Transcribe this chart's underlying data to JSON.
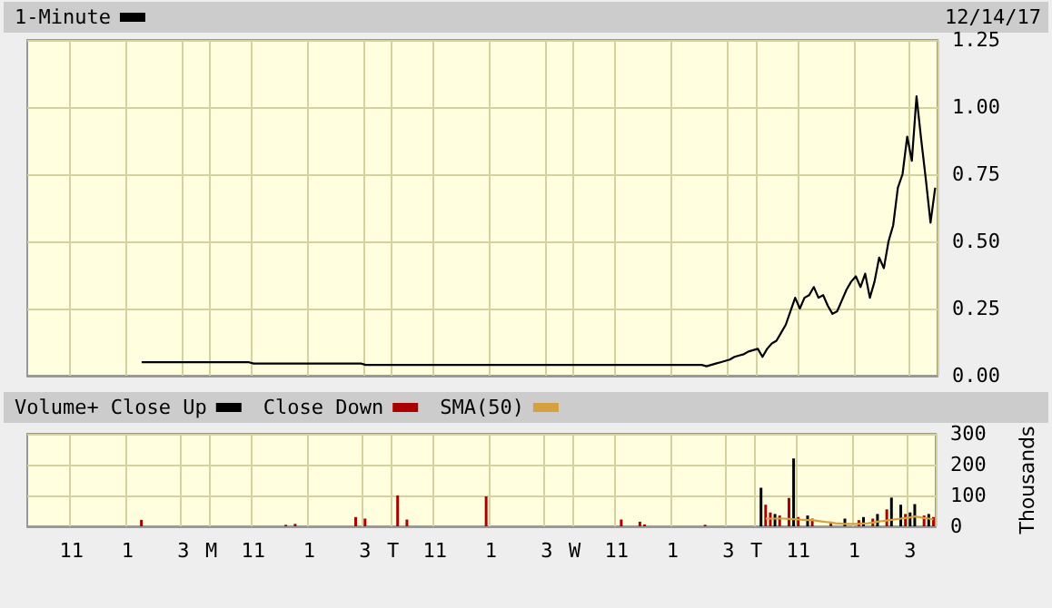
{
  "chart_data": [
    {
      "type": "line",
      "annotations": [
        "12/14/17"
      ],
      "legend": "top left",
      "grid": true,
      "marker": "none",
      "tick_labels": "y",
      "categories": [
        null,
        null,
        null,
        null,
        null,
        null,
        null,
        null,
        null,
        null,
        null,
        null,
        null,
        null,
        null,
        null,
        null,
        null,
        null,
        null,
        null,
        null,
        null,
        null,
        null,
        null,
        null,
        null,
        null,
        null,
        null,
        null,
        null,
        null,
        null,
        null,
        null,
        null,
        null,
        null,
        null,
        null,
        null,
        null,
        null,
        null,
        null,
        null,
        null,
        null,
        null,
        null,
        null,
        null,
        null,
        null,
        null,
        null,
        null,
        null,
        null,
        null,
        null,
        null,
        null,
        null,
        null,
        null,
        null,
        null,
        null,
        null,
        null,
        null,
        null,
        null,
        null,
        null,
        null,
        null,
        null,
        null,
        null,
        null,
        null,
        null,
        null,
        null,
        null,
        null,
        null,
        null,
        null,
        null,
        null,
        null,
        null,
        null,
        null,
        null,
        null,
        null,
        null,
        null,
        null,
        null,
        null,
        null,
        null,
        null,
        null,
        null,
        null,
        null,
        null,
        null,
        null,
        null,
        null,
        null,
        null,
        null,
        null,
        null,
        null,
        null,
        null,
        null,
        null,
        null,
        null,
        null,
        null,
        null,
        null,
        null,
        null,
        null,
        null,
        null,
        null,
        null,
        null,
        null,
        null,
        null,
        null,
        null,
        null,
        null,
        null,
        null,
        null,
        null,
        null,
        null,
        null,
        null,
        null,
        null,
        null,
        null,
        null,
        null,
        null,
        null,
        null,
        null,
        null,
        null,
        null,
        null,
        null,
        null,
        null,
        null,
        null,
        null,
        null,
        null,
        null,
        null,
        null,
        null,
        null,
        null,
        null,
        null,
        null,
        null,
        null,
        null,
        null,
        null,
        null
      ],
      "ylim": [
        0,
        1.25
      ],
      "yticks": [
        {
          "value": 0,
          "label": "0.00"
        },
        {
          "value": 0.25,
          "label": "0.25"
        },
        {
          "value": 0.5,
          "label": "0.50"
        },
        {
          "value": 0.75,
          "label": "0.75"
        },
        {
          "value": 1,
          "label": "1.00"
        },
        {
          "value": 1.25,
          "label": "1.25"
        }
      ],
      "series": [
        {
          "name": "1-Minute",
          "color": "#000000",
          "values": [
            null,
            null,
            null,
            null,
            null,
            null,
            null,
            null,
            null,
            null,
            null,
            null,
            null,
            null,
            null,
            null,
            null,
            null,
            null,
            null,
            null,
            null,
            null,
            null,
            0.05,
            0.05,
            0.05,
            0.05,
            0.05,
            0.05,
            0.05,
            0.05,
            0.05,
            0.05,
            0.05,
            0.05,
            0.05,
            0.05,
            0.05,
            0.05,
            0.05,
            0.05,
            0.05,
            0.05,
            0.05,
            0.05,
            0.05,
            0.05,
            0.045,
            0.045,
            0.045,
            0.045,
            0.045,
            0.045,
            0.045,
            0.045,
            0.045,
            0.045,
            0.045,
            0.045,
            0.045,
            0.045,
            0.045,
            0.045,
            0.045,
            0.045,
            0.045,
            0.045,
            0.045,
            0.045,
            0.045,
            0.045,
            0.04,
            0.04,
            0.04,
            0.04,
            0.04,
            0.04,
            0.04,
            0.04,
            0.04,
            0.04,
            0.04,
            0.04,
            0.04,
            0.04,
            0.04,
            0.04,
            0.04,
            0.04,
            0.04,
            0.04,
            0.04,
            0.04,
            0.04,
            0.04,
            0.04,
            0.04,
            0.04,
            0.04,
            0.04,
            0.04,
            0.04,
            0.04,
            0.04,
            0.04,
            0.04,
            0.04,
            0.04,
            0.04,
            0.04,
            0.04,
            0.04,
            0.04,
            0.04,
            0.04,
            0.04,
            0.04,
            0.04,
            0.04,
            0.04,
            0.04,
            0.04,
            0.04,
            0.04,
            0.04,
            0.04,
            0.04,
            0.04,
            0.04,
            0.04,
            0.04,
            0.04,
            0.04,
            0.04,
            0.04,
            0.04,
            0.04,
            0.04,
            0.04,
            0.04,
            0.04,
            0.04,
            0.04,
            0.04,
            0.035,
            0.04,
            0.045,
            0.05,
            0.055,
            0.06,
            0.07,
            0.075,
            0.08,
            0.09,
            0.095,
            0.1,
            0.07,
            0.1,
            0.12,
            0.13,
            0.16,
            0.19,
            0.24,
            0.29,
            0.25,
            0.29,
            0.3,
            0.33,
            0.29,
            0.3,
            0.26,
            0.23,
            0.24,
            0.28,
            0.32,
            0.35,
            0.37,
            0.33,
            0.38,
            0.29,
            0.35,
            0.44,
            0.4,
            0.5,
            0.56,
            0.7,
            0.75,
            0.89,
            0.8,
            1.04,
            0.88,
            0.73,
            0.57,
            0.7
          ]
        }
      ]
    },
    {
      "type": "bar",
      "legend_title": "Volume+",
      "legend": "top left",
      "grid": true,
      "ylabel": "Thousands",
      "categories": [
        null,
        null,
        null,
        null,
        null,
        null,
        null,
        null,
        null,
        "11",
        null,
        null,
        null,
        null,
        null,
        null,
        null,
        null,
        null,
        null,
        null,
        "1",
        null,
        null,
        null,
        null,
        null,
        null,
        null,
        null,
        null,
        null,
        null,
        "3",
        null,
        null,
        null,
        null,
        null,
        "M",
        null,
        null,
        null,
        null,
        null,
        null,
        null,
        null,
        "11",
        null,
        null,
        null,
        null,
        null,
        null,
        null,
        null,
        null,
        null,
        null,
        "1",
        null,
        null,
        null,
        null,
        null,
        null,
        null,
        null,
        null,
        null,
        null,
        "3",
        null,
        null,
        null,
        null,
        null,
        "T",
        null,
        null,
        null,
        null,
        null,
        null,
        null,
        null,
        "11",
        null,
        null,
        null,
        null,
        null,
        null,
        null,
        null,
        null,
        null,
        null,
        "1",
        null,
        null,
        null,
        null,
        null,
        null,
        null,
        null,
        null,
        null,
        null,
        "3",
        null,
        null,
        null,
        null,
        null,
        "W",
        null,
        null,
        null,
        null,
        null,
        null,
        null,
        null,
        "11",
        null,
        null,
        null,
        null,
        null,
        null,
        null,
        null,
        null,
        null,
        null,
        "1",
        null,
        null,
        null,
        null,
        null,
        null,
        null,
        null,
        null,
        null,
        null,
        "3",
        null,
        null,
        null,
        null,
        null,
        "T",
        null,
        null,
        null,
        null,
        null,
        null,
        null,
        null,
        "11",
        null,
        null,
        null,
        null,
        null,
        null,
        null,
        null,
        null,
        null,
        null,
        "1",
        null,
        null,
        null,
        null,
        null,
        null,
        null,
        null,
        null,
        null,
        null,
        "3",
        null,
        null,
        null,
        null,
        null
      ],
      "ylim": [
        0,
        300
      ],
      "yticks": [
        0,
        100,
        200,
        300
      ],
      "series": [
        {
          "name": "Close Up",
          "color": "#000000",
          "values": [
            null,
            null,
            null,
            null,
            null,
            null,
            null,
            null,
            null,
            null,
            null,
            null,
            null,
            null,
            null,
            null,
            null,
            null,
            null,
            null,
            null,
            null,
            null,
            null,
            null,
            null,
            null,
            null,
            null,
            null,
            null,
            null,
            null,
            null,
            null,
            null,
            null,
            null,
            null,
            null,
            null,
            null,
            null,
            null,
            null,
            null,
            null,
            null,
            null,
            null,
            null,
            null,
            null,
            null,
            null,
            null,
            null,
            null,
            null,
            null,
            null,
            null,
            null,
            null,
            null,
            null,
            null,
            null,
            null,
            null,
            null,
            null,
            null,
            null,
            null,
            null,
            null,
            null,
            null,
            null,
            null,
            null,
            null,
            null,
            null,
            null,
            null,
            null,
            null,
            null,
            null,
            null,
            null,
            null,
            null,
            null,
            null,
            null,
            null,
            null,
            null,
            null,
            null,
            null,
            null,
            null,
            null,
            null,
            null,
            null,
            null,
            null,
            null,
            null,
            null,
            null,
            null,
            null,
            null,
            null,
            null,
            null,
            null,
            null,
            null,
            null,
            null,
            null,
            null,
            null,
            null,
            null,
            null,
            null,
            null,
            null,
            null,
            null,
            null,
            null,
            null,
            null,
            null,
            null,
            null,
            null,
            null,
            null,
            null,
            null,
            null,
            null,
            null,
            null,
            null,
            null,
            null,
            125,
            null,
            null,
            40,
            null,
            null,
            null,
            220,
            null,
            null,
            35,
            null,
            null,
            null,
            null,
            null,
            null,
            null,
            25,
            null,
            null,
            null,
            30,
            null,
            null,
            40,
            null,
            null,
            93,
            null,
            70,
            null,
            45,
            72,
            null,
            null,
            40,
            null
          ]
        },
        {
          "name": "Close Down",
          "color": "#aa0000",
          "values": [
            null,
            null,
            null,
            null,
            null,
            null,
            null,
            null,
            null,
            null,
            null,
            null,
            null,
            null,
            null,
            null,
            null,
            null,
            null,
            null,
            null,
            null,
            null,
            null,
            21,
            null,
            null,
            null,
            null,
            null,
            null,
            null,
            null,
            null,
            null,
            null,
            null,
            null,
            null,
            null,
            null,
            null,
            null,
            null,
            null,
            null,
            null,
            null,
            null,
            null,
            null,
            null,
            null,
            null,
            null,
            5,
            null,
            8,
            null,
            null,
            null,
            null,
            null,
            null,
            null,
            null,
            null,
            null,
            null,
            null,
            30,
            null,
            25,
            null,
            null,
            null,
            null,
            null,
            null,
            100,
            null,
            22,
            null,
            null,
            null,
            null,
            null,
            null,
            null,
            null,
            null,
            null,
            null,
            null,
            null,
            null,
            null,
            null,
            97,
            null,
            null,
            null,
            null,
            null,
            null,
            null,
            null,
            null,
            null,
            null,
            null,
            null,
            null,
            null,
            null,
            null,
            null,
            null,
            null,
            null,
            null,
            null,
            null,
            null,
            null,
            null,
            null,
            22,
            null,
            null,
            null,
            15,
            6,
            null,
            null,
            null,
            null,
            null,
            null,
            null,
            null,
            null,
            null,
            null,
            null,
            5,
            null,
            null,
            null,
            null,
            null,
            null,
            null,
            null,
            null,
            null,
            null,
            null,
            70,
            45,
            null,
            35,
            null,
            92,
            null,
            30,
            null,
            null,
            25,
            null,
            null,
            null,
            15,
            null,
            null,
            null,
            null,
            null,
            20,
            null,
            null,
            25,
            null,
            null,
            55,
            null,
            null,
            null,
            40,
            null,
            null,
            null,
            35,
            null,
            30
          ]
        },
        {
          "name": "SMA(50)",
          "type": "line",
          "color": "#d4a040",
          "marker": "none",
          "values": [
            null,
            null,
            null,
            null,
            null,
            null,
            null,
            null,
            null,
            null,
            null,
            null,
            null,
            null,
            null,
            null,
            null,
            null,
            null,
            null,
            null,
            null,
            null,
            null,
            null,
            null,
            null,
            null,
            null,
            null,
            null,
            null,
            null,
            null,
            null,
            null,
            null,
            null,
            null,
            null,
            null,
            null,
            null,
            null,
            null,
            null,
            null,
            null,
            null,
            null,
            null,
            null,
            null,
            null,
            null,
            null,
            null,
            null,
            null,
            null,
            null,
            null,
            null,
            null,
            null,
            null,
            null,
            null,
            null,
            null,
            null,
            null,
            null,
            null,
            null,
            null,
            null,
            null,
            null,
            null,
            null,
            null,
            null,
            null,
            null,
            null,
            null,
            null,
            null,
            null,
            null,
            null,
            null,
            null,
            null,
            null,
            null,
            null,
            null,
            null,
            null,
            null,
            null,
            null,
            null,
            null,
            null,
            null,
            null,
            null,
            null,
            null,
            null,
            null,
            null,
            null,
            null,
            null,
            null,
            null,
            null,
            null,
            null,
            null,
            null,
            null,
            null,
            null,
            null,
            null,
            null,
            null,
            null,
            null,
            null,
            null,
            null,
            null,
            null,
            null,
            null,
            null,
            null,
            null,
            null,
            null,
            null,
            null,
            null,
            null,
            null,
            null,
            null,
            null,
            null,
            null,
            null,
            null,
            25,
            25,
            25,
            25,
            25,
            24,
            23,
            22,
            21,
            20,
            20,
            18,
            16,
            14,
            12,
            10,
            9,
            8,
            8,
            8,
            8,
            9,
            10,
            12,
            15,
            17,
            19,
            21,
            23,
            25,
            27,
            29,
            32,
            30,
            27,
            25,
            22
          ]
        }
      ]
    }
  ]
}
